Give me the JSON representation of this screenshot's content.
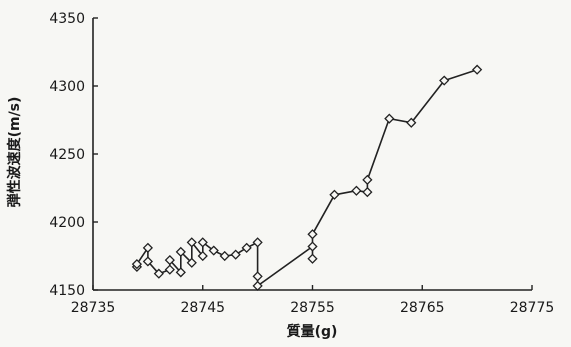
{
  "chart_data": {
    "type": "line",
    "title": "",
    "xlabel": "質量(g)",
    "ylabel": "弾性波速度(m/s)",
    "xlim": [
      28735,
      28775
    ],
    "ylim": [
      4150,
      4350
    ],
    "xticks": [
      28735,
      28745,
      28755,
      28765,
      28775
    ],
    "yticks": [
      4150,
      4200,
      4250,
      4300,
      4350
    ],
    "grid": false,
    "legend": "none",
    "marker": "diamond-open",
    "series": [
      {
        "x": [
          28739,
          28739,
          28740,
          28740,
          28741,
          28742,
          28742,
          28743,
          28743,
          28744,
          28744,
          28745,
          28745,
          28746,
          28747,
          28748,
          28749,
          28750,
          28750,
          28750,
          28755,
          28755,
          28755,
          28757,
          28759,
          28760,
          28760,
          28762,
          28764,
          28767,
          28770
        ],
        "y": [
          4167,
          4169,
          4181,
          4171,
          4162,
          4165,
          4172,
          4163,
          4178,
          4170,
          4185,
          4175,
          4185,
          4179,
          4175,
          4176,
          4181,
          4185,
          4160,
          4153,
          4182,
          4173,
          4191,
          4220,
          4223,
          4222,
          4231,
          4276,
          4273,
          4304,
          4312
        ]
      }
    ]
  }
}
